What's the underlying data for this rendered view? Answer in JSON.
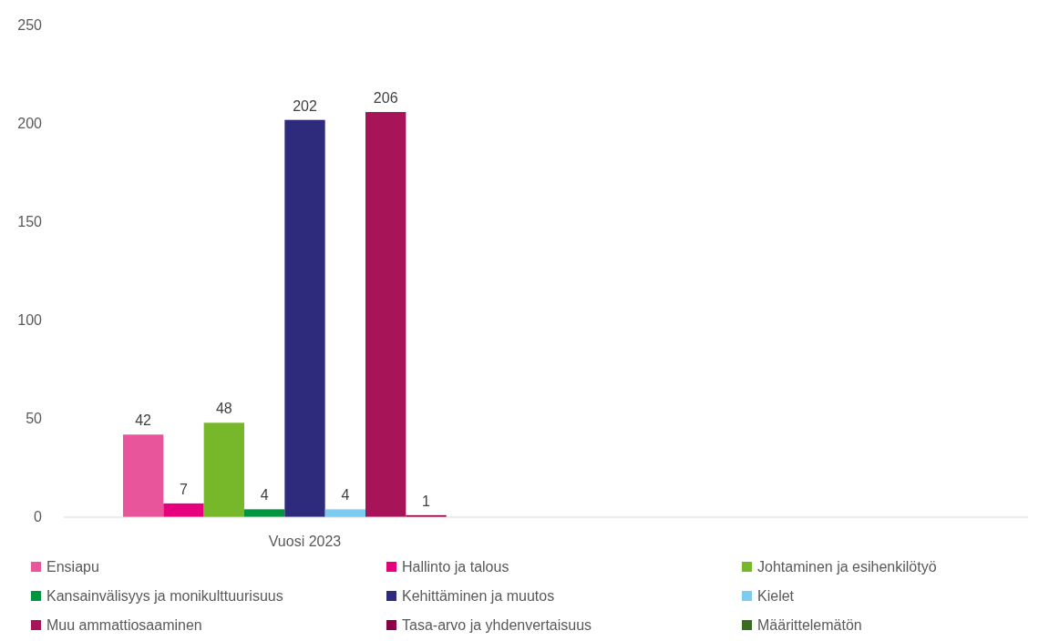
{
  "chart_data": {
    "type": "bar",
    "categories": [
      "Vuosi 2023",
      null
    ],
    "ylim": [
      0,
      250
    ],
    "yticks": [
      0,
      50,
      100,
      150,
      200,
      250
    ],
    "grid": false,
    "legend": "bottom",
    "data_labels": true,
    "series": [
      {
        "name": "Ensiapu",
        "color": "#e8559a",
        "values": [
          42,
          null
        ]
      },
      {
        "name": "Hallinto ja talous",
        "color": "#e6007e",
        "values": [
          7,
          null
        ]
      },
      {
        "name": "Johtaminen ja esihenkilötyö",
        "color": "#76b82a",
        "values": [
          48,
          null
        ]
      },
      {
        "name": "Kansainvälisyys ja monikulttuurisuus",
        "color": "#009640",
        "values": [
          4,
          null
        ]
      },
      {
        "name": "Kehittäminen ja muutos",
        "color": "#2e2a7c",
        "values": [
          202,
          null
        ]
      },
      {
        "name": "Kielet",
        "color": "#7dcbf0",
        "values": [
          4,
          null
        ]
      },
      {
        "name": "Muu ammattiosaaminen",
        "color": "#a71458",
        "values": [
          206,
          null
        ]
      },
      {
        "name": "Tasa-arvo ja yhdenvertaisuus",
        "color": "#8b0046",
        "values": [
          1,
          null
        ]
      },
      {
        "name": "Määrittelemätön",
        "color": "#3a6b1f",
        "values": [
          null,
          null
        ]
      }
    ]
  }
}
